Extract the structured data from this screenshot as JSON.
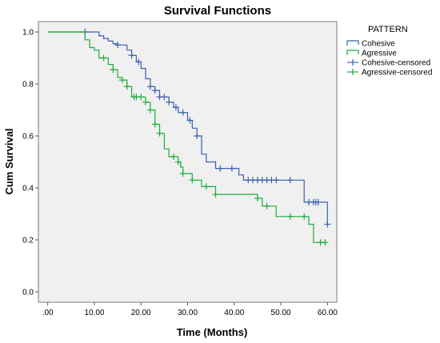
{
  "chart_data": {
    "type": "line",
    "step": true,
    "title": "Survival Functions",
    "xlabel": "Time (Months)",
    "ylabel": "Cum Survival",
    "xlim": [
      -2,
      62
    ],
    "ylim": [
      -0.04,
      1.04
    ],
    "xticks": [
      0,
      10,
      20,
      30,
      40,
      50,
      60
    ],
    "xtick_labels": [
      ".00",
      "10.00",
      "20.00",
      "30.00",
      "40.00",
      "50.00",
      "60.00"
    ],
    "yticks": [
      0,
      0.2,
      0.4,
      0.6,
      0.8,
      1.0
    ],
    "ytick_labels": [
      "0.0",
      "0.2",
      "0.4",
      "0.6",
      "0.8",
      "1.0"
    ],
    "grid": false,
    "plot_background": "#f0f0f0",
    "legend": {
      "title": "PATTERN",
      "placement": "right",
      "entries": [
        {
          "label": "Cohesive",
          "series": "Cohesive",
          "marker": "step"
        },
        {
          "label": "Agressive",
          "series": "Agressive",
          "marker": "step"
        },
        {
          "label": "Cohesive-censored",
          "series": "Cohesive",
          "marker": "plus"
        },
        {
          "label": "Agressive-censored",
          "series": "Agressive",
          "marker": "plus"
        }
      ]
    },
    "series": [
      {
        "name": "Cohesive",
        "color": "#3a5fb0",
        "steps": [
          [
            0,
            1.0
          ],
          [
            11,
            0.985
          ],
          [
            12,
            0.975
          ],
          [
            13,
            0.965
          ],
          [
            14,
            0.955
          ],
          [
            15,
            0.95
          ],
          [
            17,
            0.93
          ],
          [
            18,
            0.91
          ],
          [
            19,
            0.885
          ],
          [
            20,
            0.86
          ],
          [
            21,
            0.82
          ],
          [
            22,
            0.79
          ],
          [
            23,
            0.775
          ],
          [
            24,
            0.75
          ],
          [
            26,
            0.73
          ],
          [
            27,
            0.71
          ],
          [
            28,
            0.69
          ],
          [
            30,
            0.66
          ],
          [
            31,
            0.63
          ],
          [
            32,
            0.6
          ],
          [
            33,
            0.53
          ],
          [
            34,
            0.5
          ],
          [
            36,
            0.475
          ],
          [
            41,
            0.45
          ],
          [
            42,
            0.43
          ],
          [
            55,
            0.345
          ],
          [
            60,
            0.26
          ]
        ],
        "censored": [
          [
            8,
            1.0
          ],
          [
            15,
            0.955
          ],
          [
            18,
            0.93
          ],
          [
            19.5,
            0.885
          ],
          [
            22,
            0.79
          ],
          [
            23,
            0.775
          ],
          [
            24,
            0.75
          ],
          [
            25,
            0.75
          ],
          [
            26,
            0.73
          ],
          [
            27.5,
            0.71
          ],
          [
            29,
            0.69
          ],
          [
            30.5,
            0.66
          ],
          [
            32,
            0.6
          ],
          [
            37,
            0.475
          ],
          [
            39.5,
            0.475
          ],
          [
            43,
            0.43
          ],
          [
            44,
            0.43
          ],
          [
            45,
            0.43
          ],
          [
            46,
            0.43
          ],
          [
            47,
            0.43
          ],
          [
            48,
            0.43
          ],
          [
            49,
            0.43
          ],
          [
            52,
            0.43
          ],
          [
            56,
            0.345
          ],
          [
            57,
            0.345
          ],
          [
            57.5,
            0.345
          ],
          [
            58,
            0.345
          ],
          [
            60,
            0.26
          ]
        ]
      },
      {
        "name": "Agressive",
        "color": "#1aad3e",
        "steps": [
          [
            0,
            1.0
          ],
          [
            8,
            0.97
          ],
          [
            9,
            0.94
          ],
          [
            10,
            0.93
          ],
          [
            11,
            0.9
          ],
          [
            13,
            0.875
          ],
          [
            14,
            0.855
          ],
          [
            15,
            0.825
          ],
          [
            16,
            0.815
          ],
          [
            17,
            0.79
          ],
          [
            18,
            0.75
          ],
          [
            21,
            0.73
          ],
          [
            22,
            0.7
          ],
          [
            23,
            0.645
          ],
          [
            24,
            0.61
          ],
          [
            25,
            0.55
          ],
          [
            26,
            0.52
          ],
          [
            28,
            0.5
          ],
          [
            28.5,
            0.48
          ],
          [
            29,
            0.455
          ],
          [
            31,
            0.43
          ],
          [
            33,
            0.405
          ],
          [
            36,
            0.375
          ],
          [
            45,
            0.36
          ],
          [
            46,
            0.33
          ],
          [
            49,
            0.29
          ],
          [
            56,
            0.26
          ],
          [
            57,
            0.19
          ]
        ],
        "censored": [
          [
            12,
            0.9
          ],
          [
            14,
            0.855
          ],
          [
            16,
            0.825
          ],
          [
            17,
            0.815
          ],
          [
            18.5,
            0.75
          ],
          [
            19,
            0.75
          ],
          [
            20,
            0.75
          ],
          [
            21,
            0.73
          ],
          [
            22,
            0.7
          ],
          [
            23,
            0.645
          ],
          [
            24,
            0.61
          ],
          [
            27,
            0.52
          ],
          [
            28,
            0.5
          ],
          [
            29,
            0.455
          ],
          [
            31,
            0.43
          ],
          [
            34,
            0.405
          ],
          [
            36,
            0.375
          ],
          [
            45,
            0.375
          ],
          [
            47,
            0.33
          ],
          [
            52,
            0.29
          ],
          [
            55,
            0.29
          ],
          [
            58.5,
            0.19
          ],
          [
            59.5,
            0.19
          ]
        ]
      }
    ]
  }
}
